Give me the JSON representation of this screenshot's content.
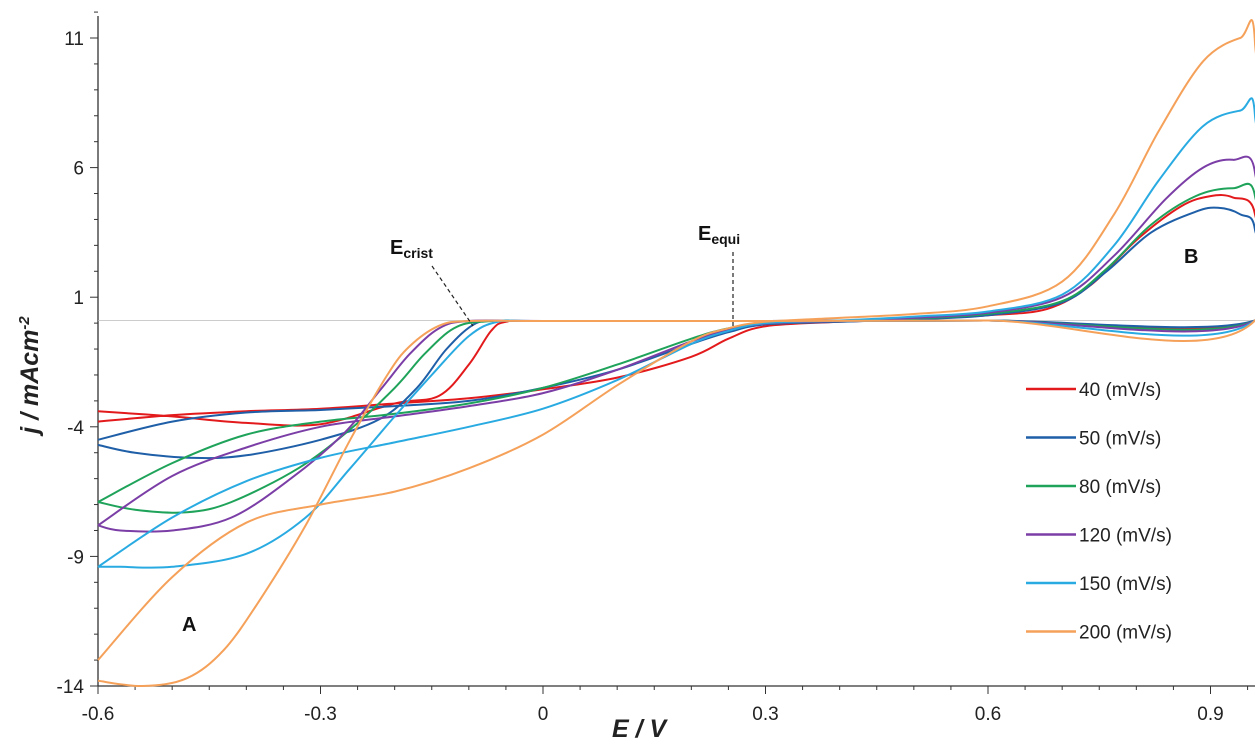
{
  "chart_data": {
    "type": "line",
    "xlabel": "E / V",
    "ylabel_main": "j / mAcm",
    "ylabel_sup": "-2",
    "xlim": [
      -0.6,
      0.96
    ],
    "ylim": [
      -14,
      12
    ],
    "x_ticks": [
      -0.6,
      -0.3,
      0,
      0.3,
      0.6,
      0.9
    ],
    "x_tick_labels": [
      "-0.6",
      "-0.3",
      "0",
      "0.3",
      "0.6",
      "0.9"
    ],
    "y_ticks": [
      11,
      6,
      1,
      -4,
      -9,
      -14
    ],
    "y_tick_labels": [
      "11",
      "6",
      "1",
      "-4",
      "-9",
      "-14"
    ],
    "grid": false,
    "legend_position": "right",
    "annotations": {
      "A": "A",
      "B": "B",
      "e_crist_main": "E",
      "e_crist_sub": "crist",
      "e_equi_main": "E",
      "e_equi_sub": "equi"
    },
    "series": [
      {
        "name": "40 (mV/s)",
        "color": "#e31a1c",
        "forward": [
          [
            -0.6,
            -3.8
          ],
          [
            -0.5,
            -3.55
          ],
          [
            -0.4,
            -3.4
          ],
          [
            -0.3,
            -3.3
          ],
          [
            -0.2,
            -3.1
          ],
          [
            -0.1,
            -2.9
          ],
          [
            0,
            -2.55
          ],
          [
            0.1,
            -2.1
          ],
          [
            0.2,
            -1.3
          ],
          [
            0.25,
            -0.6
          ],
          [
            0.3,
            -0.12
          ],
          [
            0.4,
            0.05
          ],
          [
            0.5,
            0.15
          ],
          [
            0.6,
            0.3
          ],
          [
            0.68,
            0.55
          ],
          [
            0.74,
            1.5
          ],
          [
            0.8,
            3.2
          ],
          [
            0.86,
            4.5
          ],
          [
            0.9,
            4.9
          ],
          [
            0.93,
            4.85
          ],
          [
            0.96,
            4.2
          ]
        ],
        "reverse": [
          [
            0.96,
            0.1
          ],
          [
            0.6,
            0.1
          ],
          [
            0.3,
            0.08
          ],
          [
            0,
            0.08
          ],
          [
            -0.05,
            0.05
          ],
          [
            -0.07,
            -0.3
          ],
          [
            -0.1,
            -1.6
          ],
          [
            -0.14,
            -2.8
          ],
          [
            -0.2,
            -3.1
          ],
          [
            -0.3,
            -3.9
          ],
          [
            -0.4,
            -3.85
          ],
          [
            -0.5,
            -3.6
          ],
          [
            -0.6,
            -3.4
          ]
        ]
      },
      {
        "name": "50 (mV/s)",
        "color": "#1f5fa8",
        "forward": [
          [
            -0.6,
            -4.5
          ],
          [
            -0.5,
            -3.8
          ],
          [
            -0.4,
            -3.45
          ],
          [
            -0.3,
            -3.35
          ],
          [
            -0.2,
            -3.2
          ],
          [
            -0.1,
            -3.0
          ],
          [
            0,
            -2.5
          ],
          [
            0.1,
            -1.8
          ],
          [
            0.2,
            -0.8
          ],
          [
            0.25,
            -0.35
          ],
          [
            0.3,
            -0.05
          ],
          [
            0.4,
            0.05
          ],
          [
            0.5,
            0.15
          ],
          [
            0.6,
            0.3
          ],
          [
            0.7,
            0.8
          ],
          [
            0.76,
            2.0
          ],
          [
            0.82,
            3.5
          ],
          [
            0.88,
            4.3
          ],
          [
            0.91,
            4.45
          ],
          [
            0.94,
            4.2
          ],
          [
            0.96,
            3.6
          ]
        ],
        "reverse": [
          [
            0.96,
            0.1
          ],
          [
            0.6,
            0.1
          ],
          [
            0.3,
            0.08
          ],
          [
            0,
            0.08
          ],
          [
            -0.05,
            0.08
          ],
          [
            -0.09,
            0.0
          ],
          [
            -0.13,
            -1.0
          ],
          [
            -0.17,
            -2.5
          ],
          [
            -0.22,
            -3.7
          ],
          [
            -0.3,
            -4.5
          ],
          [
            -0.4,
            -5.1
          ],
          [
            -0.47,
            -5.2
          ],
          [
            -0.55,
            -5.0
          ],
          [
            -0.6,
            -4.7
          ]
        ]
      },
      {
        "name": "80 (mV/s)",
        "color": "#1fa35a",
        "forward": [
          [
            -0.6,
            -6.9
          ],
          [
            -0.5,
            -5.4
          ],
          [
            -0.4,
            -4.3
          ],
          [
            -0.3,
            -3.8
          ],
          [
            -0.2,
            -3.5
          ],
          [
            -0.1,
            -3.1
          ],
          [
            0,
            -2.5
          ],
          [
            0.1,
            -1.6
          ],
          [
            0.2,
            -0.6
          ],
          [
            0.25,
            -0.2
          ],
          [
            0.3,
            -0.02
          ],
          [
            0.4,
            0.08
          ],
          [
            0.5,
            0.18
          ],
          [
            0.6,
            0.35
          ],
          [
            0.7,
            0.85
          ],
          [
            0.76,
            2.1
          ],
          [
            0.82,
            3.8
          ],
          [
            0.88,
            4.9
          ],
          [
            0.93,
            5.2
          ],
          [
            0.96,
            4.9
          ]
        ],
        "reverse": [
          [
            0.96,
            0.1
          ],
          [
            0.6,
            0.1
          ],
          [
            0.3,
            0.08
          ],
          [
            0,
            0.08
          ],
          [
            -0.08,
            0.06
          ],
          [
            -0.12,
            -0.2
          ],
          [
            -0.16,
            -1.2
          ],
          [
            -0.2,
            -2.5
          ],
          [
            -0.26,
            -4.1
          ],
          [
            -0.33,
            -5.6
          ],
          [
            -0.42,
            -6.9
          ],
          [
            -0.48,
            -7.3
          ],
          [
            -0.55,
            -7.2
          ],
          [
            -0.6,
            -6.9
          ]
        ]
      },
      {
        "name": "120 (mV/s)",
        "color": "#7b3ea6",
        "forward": [
          [
            -0.6,
            -7.8
          ],
          [
            -0.5,
            -5.9
          ],
          [
            -0.4,
            -4.8
          ],
          [
            -0.3,
            -4.0
          ],
          [
            -0.2,
            -3.6
          ],
          [
            -0.1,
            -3.2
          ],
          [
            0,
            -2.7
          ],
          [
            0.1,
            -1.8
          ],
          [
            0.2,
            -0.7
          ],
          [
            0.25,
            -0.25
          ],
          [
            0.3,
            -0.02
          ],
          [
            0.4,
            0.08
          ],
          [
            0.5,
            0.2
          ],
          [
            0.6,
            0.4
          ],
          [
            0.7,
            1.0
          ],
          [
            0.77,
            2.6
          ],
          [
            0.84,
            4.8
          ],
          [
            0.89,
            6.0
          ],
          [
            0.93,
            6.3
          ],
          [
            0.96,
            5.8
          ]
        ],
        "reverse": [
          [
            0.96,
            0.1
          ],
          [
            0.6,
            0.1
          ],
          [
            0.3,
            0.08
          ],
          [
            0,
            0.08
          ],
          [
            -0.1,
            0.08
          ],
          [
            -0.14,
            -0.2
          ],
          [
            -0.18,
            -1.2
          ],
          [
            -0.22,
            -2.6
          ],
          [
            -0.27,
            -4.3
          ],
          [
            -0.34,
            -6.0
          ],
          [
            -0.42,
            -7.5
          ],
          [
            -0.5,
            -8.0
          ],
          [
            -0.57,
            -8.0
          ],
          [
            -0.6,
            -7.8
          ]
        ]
      },
      {
        "name": "150 (mV/s)",
        "color": "#29abe2",
        "forward": [
          [
            -0.6,
            -9.4
          ],
          [
            -0.5,
            -7.5
          ],
          [
            -0.4,
            -6.1
          ],
          [
            -0.3,
            -5.2
          ],
          [
            -0.2,
            -4.6
          ],
          [
            -0.1,
            -4.0
          ],
          [
            0,
            -3.3
          ],
          [
            0.1,
            -2.2
          ],
          [
            0.2,
            -0.8
          ],
          [
            0.25,
            -0.3
          ],
          [
            0.3,
            0.0
          ],
          [
            0.4,
            0.1
          ],
          [
            0.5,
            0.25
          ],
          [
            0.6,
            0.45
          ],
          [
            0.7,
            1.1
          ],
          [
            0.77,
            3.0
          ],
          [
            0.83,
            5.5
          ],
          [
            0.89,
            7.6
          ],
          [
            0.94,
            8.2
          ],
          [
            0.96,
            8.0
          ]
        ],
        "reverse": [
          [
            0.96,
            0.1
          ],
          [
            0.6,
            0.1
          ],
          [
            0.3,
            0.08
          ],
          [
            0,
            0.08
          ],
          [
            -0.06,
            0.06
          ],
          [
            -0.1,
            -0.5
          ],
          [
            -0.15,
            -2.0
          ],
          [
            -0.2,
            -3.6
          ],
          [
            -0.26,
            -5.6
          ],
          [
            -0.32,
            -7.5
          ],
          [
            -0.4,
            -8.9
          ],
          [
            -0.5,
            -9.4
          ],
          [
            -0.57,
            -9.4
          ],
          [
            -0.6,
            -9.4
          ]
        ]
      },
      {
        "name": "200 (mV/s)",
        "color": "#f5a15a",
        "forward": [
          [
            -0.6,
            -13.0
          ],
          [
            -0.5,
            -9.8
          ],
          [
            -0.4,
            -7.7
          ],
          [
            -0.3,
            -7.0
          ],
          [
            -0.2,
            -6.5
          ],
          [
            -0.1,
            -5.6
          ],
          [
            0,
            -4.3
          ],
          [
            0.1,
            -2.4
          ],
          [
            0.2,
            -0.7
          ],
          [
            0.25,
            -0.2
          ],
          [
            0.3,
            0.05
          ],
          [
            0.4,
            0.2
          ],
          [
            0.5,
            0.35
          ],
          [
            0.6,
            0.65
          ],
          [
            0.7,
            1.6
          ],
          [
            0.77,
            4.2
          ],
          [
            0.83,
            7.4
          ],
          [
            0.89,
            10.1
          ],
          [
            0.94,
            11.0
          ],
          [
            0.96,
            10.8
          ]
        ],
        "reverse": [
          [
            0.96,
            0.1
          ],
          [
            0.6,
            0.1
          ],
          [
            0.3,
            0.08
          ],
          [
            0,
            0.08
          ],
          [
            -0.1,
            0.08
          ],
          [
            -0.14,
            -0.1
          ],
          [
            -0.18,
            -0.9
          ],
          [
            -0.21,
            -2.0
          ],
          [
            -0.26,
            -4.5
          ],
          [
            -0.32,
            -7.8
          ],
          [
            -0.38,
            -10.6
          ],
          [
            -0.43,
            -12.6
          ],
          [
            -0.48,
            -13.7
          ],
          [
            -0.54,
            -14.0
          ],
          [
            -0.6,
            -13.8
          ]
        ]
      }
    ]
  }
}
